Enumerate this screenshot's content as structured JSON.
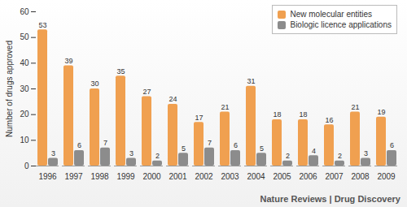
{
  "chart_data": {
    "type": "bar",
    "y_label": "Number of drugs approved",
    "caption": "Nature Reviews | Drug Discovery",
    "categories": [
      "1996",
      "1997",
      "1998",
      "1999",
      "2000",
      "2001",
      "2002",
      "2003",
      "2004",
      "2005",
      "2006",
      "2007",
      "2008",
      "2009"
    ],
    "series": [
      {
        "name": "New molecular entities",
        "color": "#f0a050",
        "values": [
          53,
          39,
          30,
          35,
          27,
          24,
          17,
          21,
          31,
          18,
          18,
          16,
          21,
          19
        ]
      },
      {
        "name": "Biologic licence applications",
        "color": "#8c8c8c",
        "values": [
          3,
          6,
          7,
          3,
          2,
          5,
          7,
          6,
          5,
          2,
          4,
          2,
          3,
          6
        ]
      }
    ],
    "ylim": [
      0,
      60
    ],
    "yticks": [
      0,
      10,
      20,
      30,
      40,
      50,
      60
    ],
    "grid": false,
    "legend": "upper right",
    "data_labels": true
  }
}
